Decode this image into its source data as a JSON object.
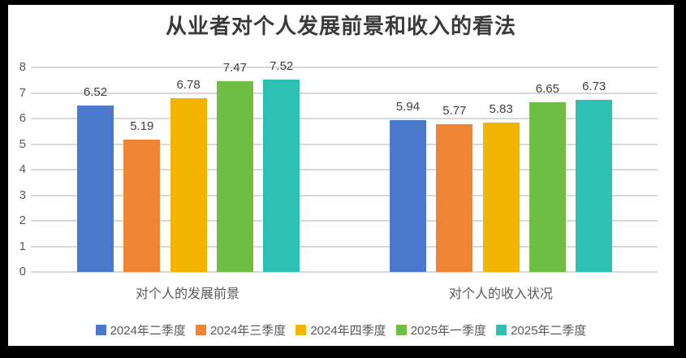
{
  "title": "从业者对个人发展前景和收入的看法",
  "chart_data": {
    "type": "bar",
    "title": "从业者对个人发展前景和收入的看法",
    "categories": [
      "对个人的发展前景",
      "对个人的收入状况"
    ],
    "series": [
      {
        "name": "2024年二季度",
        "color": "#4A78CB",
        "values": [
          6.52,
          5.94
        ]
      },
      {
        "name": "2024年三季度",
        "color": "#EE8434",
        "values": [
          5.19,
          5.77
        ]
      },
      {
        "name": "2024年四季度",
        "color": "#F2B500",
        "values": [
          6.78,
          5.83
        ]
      },
      {
        "name": "2025年一季度",
        "color": "#70BF44",
        "values": [
          7.47,
          6.65
        ]
      },
      {
        "name": "2025年二季度",
        "color": "#2EC0B2",
        "values": [
          7.52,
          6.73
        ]
      }
    ],
    "data_labels": [
      "6.52",
      "5.19",
      "6.78",
      "7.47",
      "7.52",
      "5.94",
      "5.77",
      "5.83",
      "6.65",
      "6.73"
    ],
    "ylim": [
      0,
      8
    ],
    "yticks": [
      0,
      1,
      2,
      3,
      4,
      5,
      6,
      7,
      8
    ],
    "grid": true,
    "legend_position": "bottom"
  },
  "colors": {
    "frame": "#000000",
    "background": "#FFFFFF",
    "gridline": "#D9D9D9",
    "axis_text": "#595959",
    "data_label": "#404040",
    "title_text": "#3A3A3A"
  }
}
